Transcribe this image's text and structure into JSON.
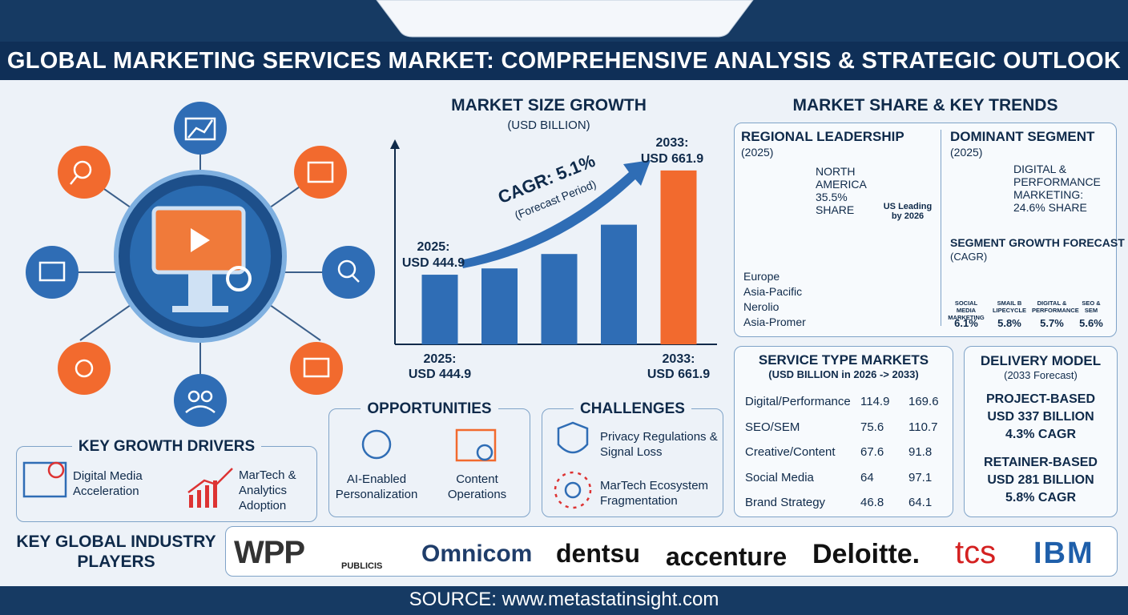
{
  "header": {
    "title": "GLOBAL MARKETING SERVICES MARKET: COMPREHENSIVE ANALYSIS & STRATEGIC OUTLOOK"
  },
  "chart_data": {
    "type": "bar",
    "title": "MARKET SIZE GROWTH",
    "subtitle": "(USD BILLION)",
    "categories": [
      "2025:",
      null,
      null,
      null,
      "2033:"
    ],
    "values": [
      444.9,
      458,
      488,
      549,
      661.9
    ],
    "value_labels": [
      "USD 444.9",
      null,
      null,
      null,
      "USD 661.9"
    ],
    "colors": [
      "#2f6db5",
      "#2f6db5",
      "#2f6db5",
      "#2f6db5",
      "#f26a2e"
    ],
    "ylim": [
      300,
      700
    ],
    "annotations": [
      "CAGR: 5.1%",
      "(Forecast Period)"
    ]
  },
  "market_share": {
    "title": "MARKET SHARE & KEY TRENDS",
    "regional": {
      "title": "REGIONAL LEADERSHIP",
      "year": "(2025)",
      "leader": "NORTH AMERICA 35.5% SHARE",
      "badge": "US Leading by 2026",
      "regions": [
        "Europe",
        "Asia-Pacific",
        "Nerolio",
        "Asia-Promer"
      ]
    },
    "dominant": {
      "title": "DOMINANT SEGMENT",
      "year": "(2025)",
      "text": "DIGITAL & PERFORMANCE MARKETING: 24.6% SHARE"
    },
    "segment_growth": {
      "title": "SEGMENT GROWTH FORECAST",
      "subtitle": "(CAGR)",
      "items": [
        {
          "label": "SOCIAL MEDIA MARKETING",
          "value": "6.1%"
        },
        {
          "label": "SMAIL B LIPECYCLE",
          "value": "5.8%"
        },
        {
          "label": "DIGITAL & PERFORMANCE",
          "value": "5.7%"
        },
        {
          "label": "SEO & SEM",
          "value": "5.6%"
        }
      ]
    }
  },
  "service_types": {
    "title": "SERVICE TYPE MARKETS",
    "subtitle": "(USD BILLION in 2026 -> 2033)",
    "rows": [
      [
        "Digital/Performance",
        "114.9",
        "169.6"
      ],
      [
        "SEO/SEM",
        "75.6",
        "110.7"
      ],
      [
        "Creative/Content",
        "67.6",
        "91.8"
      ],
      [
        "Social Media",
        "64",
        "97.1"
      ],
      [
        "Brand Strategy",
        "46.8",
        "64.1"
      ]
    ]
  },
  "delivery_model": {
    "title": "DELIVERY MODEL",
    "subtitle": "(2033 Forecast)",
    "items": [
      {
        "name": "PROJECT-BASED",
        "value": "USD 337 BILLION",
        "cagr": "4.3% CAGR"
      },
      {
        "name": "RETAINER-BASED",
        "value": "USD 281 BILLION",
        "cagr": "5.8% CAGR"
      }
    ]
  },
  "opportunities": {
    "title": "OPPORTUNITIES",
    "items": [
      "AI-Enabled Personalization",
      "Content Operations"
    ]
  },
  "challenges": {
    "title": "CHALLENGES",
    "items": [
      "Privacy Regulations & Signal Loss",
      "MarTech Ecosystem Fragmentation"
    ]
  },
  "growth_drivers": {
    "title": "KEY GROWTH DRIVERS",
    "items": [
      "Digital Media Acceleration",
      "MarTech & Analytics Adoption"
    ]
  },
  "players": {
    "title": "KEY GLOBAL INDUSTRY PLAYERS",
    "names": [
      "WPP",
      "PUBLICIS",
      "Omnicom",
      "dentsu",
      "accenture",
      "Deloitte.",
      "tcs",
      "IBM"
    ]
  },
  "footer": {
    "source": "SOURCE: www.metastatinsight.com"
  }
}
